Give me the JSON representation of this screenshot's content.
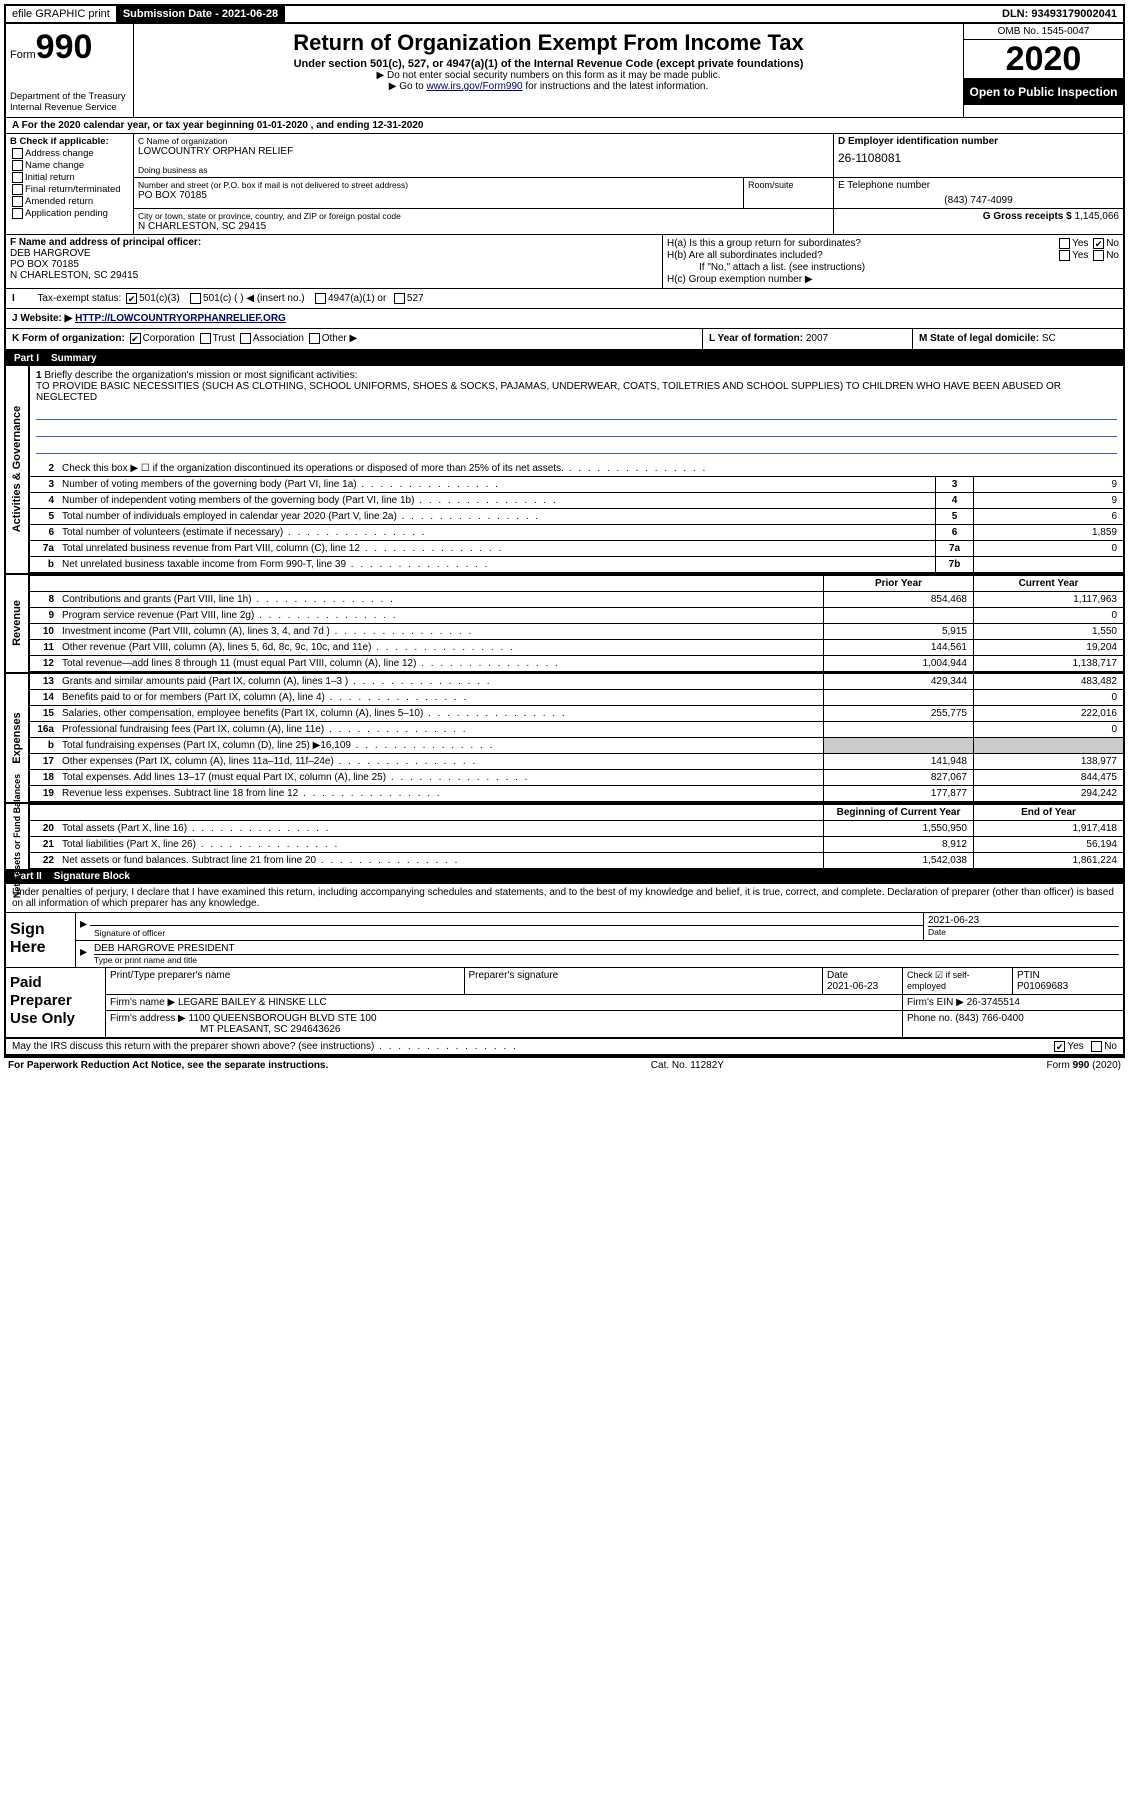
{
  "topbar": {
    "efile": "efile GRAPHIC print",
    "submission_label": "Submission Date - 2021-06-28",
    "dln": "DLN: 93493179002041"
  },
  "header": {
    "form_prefix": "Form",
    "form_number": "990",
    "dept": "Department of the Treasury\nInternal Revenue Service",
    "title": "Return of Organization Exempt From Income Tax",
    "subtitle": "Under section 501(c), 527, or 4947(a)(1) of the Internal Revenue Code (except private foundations)",
    "note1": "▶ Do not enter social security numbers on this form as it may be made public.",
    "note2_pre": "▶ Go to ",
    "note2_link": "www.irs.gov/Form990",
    "note2_post": " for instructions and the latest information.",
    "omb": "OMB No. 1545-0047",
    "year": "2020",
    "inspection": "Open to Public Inspection"
  },
  "taxyear": "A For the 2020 calendar year, or tax year beginning 01-01-2020   , and ending 12-31-2020",
  "checkB": {
    "label": "B Check if applicable:",
    "items": [
      "Address change",
      "Name change",
      "Initial return",
      "Final return/terminated",
      "Amended return",
      "Application pending"
    ]
  },
  "org": {
    "name_label": "C Name of organization",
    "name": "LOWCOUNTRY ORPHAN RELIEF",
    "dba_label": "Doing business as",
    "addr_label": "Number and street (or P.O. box if mail is not delivered to street address)",
    "addr": "PO BOX 70185",
    "room_label": "Room/suite",
    "city_label": "City or town, state or province, country, and ZIP or foreign postal code",
    "city": "N CHARLESTON, SC  29415"
  },
  "colD": {
    "label": "D Employer identification number",
    "ein": "26-1108081"
  },
  "colE": {
    "label": "E Telephone number",
    "phone": "(843) 747-4099"
  },
  "colG": {
    "label": "G Gross receipts $",
    "value": "1,145,066"
  },
  "colF": {
    "label": "F  Name and address of principal officer:",
    "name": "DEB HARGROVE",
    "addr1": "PO BOX 70185",
    "addr2": "N CHARLESTON, SC  29415"
  },
  "colH": {
    "a": "H(a)  Is this a group return for subordinates?",
    "a_no": "No",
    "b": "H(b)  Are all subordinates included?",
    "b_note": "If \"No,\" attach a list. (see instructions)",
    "c": "H(c)  Group exemption number ▶"
  },
  "status": {
    "label": "Tax-exempt status:",
    "c3": "501(c)(3)",
    "c_other": "501(c) (  ) ◀ (insert no.)",
    "a1": "4947(a)(1) or",
    "s527": "527"
  },
  "website": {
    "label": "J   Website: ▶",
    "url": "HTTP://LOWCOUNTRYORPHANRELIEF.ORG"
  },
  "K": {
    "label": "K Form of organization:",
    "corp": "Corporation",
    "trust": "Trust",
    "assoc": "Association",
    "other": "Other ▶"
  },
  "L": {
    "label": "L Year of formation:",
    "value": "2007"
  },
  "M": {
    "label": "M State of legal domicile:",
    "value": "SC"
  },
  "part1": {
    "label": "Part I",
    "title": "Summary"
  },
  "mission": {
    "num": "1",
    "label": "Briefly describe the organization's mission or most significant activities:",
    "text": "TO PROVIDE BASIC NECESSITIES (SUCH AS CLOTHING, SCHOOL UNIFORMS, SHOES & SOCKS, PAJAMAS, UNDERWEAR, COATS, TOILETRIES AND SCHOOL SUPPLIES) TO CHILDREN WHO HAVE BEEN ABUSED OR NEGLECTED"
  },
  "side_labels": {
    "ag": "Activities & Governance",
    "rev": "Revenue",
    "exp": "Expenses",
    "net": "Net Assets or\nFund Balances"
  },
  "gov_lines": [
    {
      "n": "2",
      "t": "Check this box ▶ ☐  if the organization discontinued its operations or disposed of more than 25% of its net assets.",
      "b": "",
      "v": ""
    },
    {
      "n": "3",
      "t": "Number of voting members of the governing body (Part VI, line 1a)",
      "b": "3",
      "v": "9"
    },
    {
      "n": "4",
      "t": "Number of independent voting members of the governing body (Part VI, line 1b)",
      "b": "4",
      "v": "9"
    },
    {
      "n": "5",
      "t": "Total number of individuals employed in calendar year 2020 (Part V, line 2a)",
      "b": "5",
      "v": "6"
    },
    {
      "n": "6",
      "t": "Total number of volunteers (estimate if necessary)",
      "b": "6",
      "v": "1,859"
    },
    {
      "n": "7a",
      "t": "Total unrelated business revenue from Part VIII, column (C), line 12",
      "b": "7a",
      "v": "0"
    },
    {
      "n": "b",
      "t": "Net unrelated business taxable income from Form 990-T, line 39",
      "b": "7b",
      "v": ""
    }
  ],
  "cols": {
    "prior": "Prior Year",
    "current": "Current Year",
    "begin": "Beginning of Current Year",
    "end": "End of Year"
  },
  "rev_lines": [
    {
      "n": "8",
      "t": "Contributions and grants (Part VIII, line 1h)",
      "c1": "854,468",
      "c2": "1,117,963"
    },
    {
      "n": "9",
      "t": "Program service revenue (Part VIII, line 2g)",
      "c1": "",
      "c2": "0"
    },
    {
      "n": "10",
      "t": "Investment income (Part VIII, column (A), lines 3, 4, and 7d )",
      "c1": "5,915",
      "c2": "1,550"
    },
    {
      "n": "11",
      "t": "Other revenue (Part VIII, column (A), lines 5, 6d, 8c, 9c, 10c, and 11e)",
      "c1": "144,561",
      "c2": "19,204"
    },
    {
      "n": "12",
      "t": "Total revenue—add lines 8 through 11 (must equal Part VIII, column (A), line 12)",
      "c1": "1,004,944",
      "c2": "1,138,717"
    }
  ],
  "exp_lines": [
    {
      "n": "13",
      "t": "Grants and similar amounts paid (Part IX, column (A), lines 1–3 )",
      "c1": "429,344",
      "c2": "483,482"
    },
    {
      "n": "14",
      "t": "Benefits paid to or for members (Part IX, column (A), line 4)",
      "c1": "",
      "c2": "0"
    },
    {
      "n": "15",
      "t": "Salaries, other compensation, employee benefits (Part IX, column (A), lines 5–10)",
      "c1": "255,775",
      "c2": "222,016"
    },
    {
      "n": "16a",
      "t": "Professional fundraising fees (Part IX, column (A), line 11e)",
      "c1": "",
      "c2": "0"
    },
    {
      "n": "b",
      "t": "Total fundraising expenses (Part IX, column (D), line 25) ▶16,109",
      "c1": "grey",
      "c2": "grey"
    },
    {
      "n": "17",
      "t": "Other expenses (Part IX, column (A), lines 11a–11d, 11f–24e)",
      "c1": "141,948",
      "c2": "138,977"
    },
    {
      "n": "18",
      "t": "Total expenses. Add lines 13–17 (must equal Part IX, column (A), line 25)",
      "c1": "827,067",
      "c2": "844,475"
    },
    {
      "n": "19",
      "t": "Revenue less expenses. Subtract line 18 from line 12",
      "c1": "177,877",
      "c2": "294,242"
    }
  ],
  "net_lines": [
    {
      "n": "20",
      "t": "Total assets (Part X, line 16)",
      "c1": "1,550,950",
      "c2": "1,917,418"
    },
    {
      "n": "21",
      "t": "Total liabilities (Part X, line 26)",
      "c1": "8,912",
      "c2": "56,194"
    },
    {
      "n": "22",
      "t": "Net assets or fund balances. Subtract line 21 from line 20",
      "c1": "1,542,038",
      "c2": "1,861,224"
    }
  ],
  "part2": {
    "label": "Part II",
    "title": "Signature Block"
  },
  "sig": {
    "decl": "Under penalties of perjury, I declare that I have examined this return, including accompanying schedules and statements, and to the best of my knowledge and belief, it is true, correct, and complete. Declaration of preparer (other than officer) is based on all information of which preparer has any knowledge.",
    "signhere": "Sign Here",
    "sig_officer": "Signature of officer",
    "date_label": "Date",
    "date": "2021-06-23",
    "name_title": "DEB HARGROVE  PRESIDENT",
    "name_title_label": "Type or print name and title"
  },
  "paid": {
    "label": "Paid Preparer Use Only",
    "h_name": "Print/Type preparer's name",
    "h_sig": "Preparer's signature",
    "h_date": "Date",
    "date": "2021-06-23",
    "check_label": "Check ☑ if self-employed",
    "ptin_label": "PTIN",
    "ptin": "P01069683",
    "firm_label": "Firm's name    ▶",
    "firm": "LEGARE BAILEY & HINSKE LLC",
    "ein_label": "Firm's EIN ▶",
    "ein": "26-3745514",
    "addr_label": "Firm's address ▶",
    "addr1": "1100 QUEENSBOROUGH BLVD STE 100",
    "addr2": "MT PLEASANT, SC  294643626",
    "phone_label": "Phone no.",
    "phone": "(843) 766-0400"
  },
  "discuss": {
    "q": "May the IRS discuss this return with the preparer shown above? (see instructions)",
    "yes": "Yes",
    "no": "No"
  },
  "footer": {
    "left": "For Paperwork Reduction Act Notice, see the separate instructions.",
    "mid": "Cat. No. 11282Y",
    "right": "Form 990 (2020)"
  }
}
